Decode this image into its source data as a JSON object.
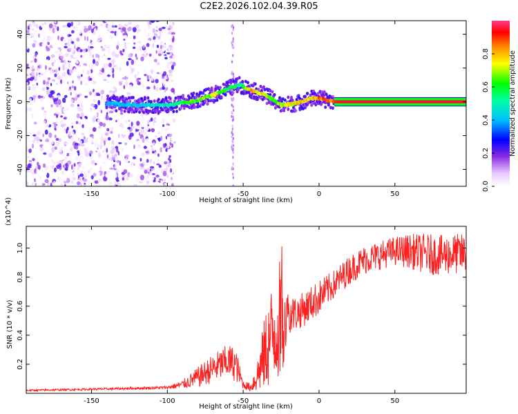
{
  "title": "C2E2.2026.102.04.39.R05",
  "colorbar": {
    "label": "Normalized spectral amplitude",
    "ticks": [
      "0.0",
      "0.2",
      "0.4",
      "0.6",
      "0.8"
    ],
    "tick_values": [
      0.0,
      0.2,
      0.4,
      0.6,
      0.8
    ]
  },
  "chart_data": [
    {
      "type": "heatmap",
      "title": "",
      "xlabel": "Height of straight line (km)",
      "ylabel": "Frequency (Hz)",
      "xlim": [
        -193,
        97
      ],
      "ylim": [
        -50,
        48
      ],
      "xticks": [
        -150,
        -100,
        -50,
        0,
        50
      ],
      "xtick_labels": [
        "-150",
        "-100",
        "-50",
        "0",
        "50"
      ],
      "yticks": [
        -40,
        -20,
        0,
        20,
        40
      ],
      "ytick_labels": [
        "-40",
        "-20",
        "0",
        "20",
        "40"
      ],
      "zlim": [
        0,
        1
      ],
      "ridge": {
        "x": [
          -140,
          -120,
          -100,
          -85,
          -70,
          -60,
          -52,
          -45,
          -35,
          -25,
          -15,
          -5,
          0,
          10,
          97
        ],
        "freq": [
          -1,
          -2,
          -2,
          0,
          4,
          8,
          10,
          7,
          4,
          -2,
          -1,
          2,
          2,
          0,
          0
        ],
        "amplitude": [
          0.4,
          0.45,
          0.5,
          0.65,
          0.75,
          0.6,
          0.55,
          0.85,
          0.75,
          0.7,
          0.8,
          0.8,
          0.9,
          0.95,
          0.95
        ]
      },
      "noise_region": {
        "x": [
          -193,
          -95
        ],
        "freq": [
          -50,
          48
        ],
        "amplitude": [
          0.0,
          0.25
        ]
      }
    },
    {
      "type": "line",
      "title": "",
      "xlabel": "Height of straight line (km)",
      "ylabel": "SNR (10 * v/v)",
      "y_multiplier": "(x10^4)",
      "xlim": [
        -193,
        97
      ],
      "ylim": [
        0,
        1.15
      ],
      "xticks": [
        -150,
        -100,
        -50,
        0,
        50
      ],
      "xtick_labels": [
        "-150",
        "-100",
        "-50",
        "0",
        "50"
      ],
      "yticks": [
        0.2,
        0.4,
        0.6,
        0.8,
        1.0
      ],
      "ytick_labels": [
        "0.2",
        "0.4",
        "0.6",
        "0.8",
        "1.0"
      ],
      "series": [
        {
          "name": "SNR",
          "color": "#ff2020",
          "x": [
            -193,
            -140,
            -100,
            -90,
            -80,
            -70,
            -60,
            -55,
            -50,
            -45,
            -40,
            -35,
            -30,
            -25,
            -20,
            -15,
            -10,
            -5,
            0,
            10,
            20,
            30,
            40,
            50,
            60,
            70,
            80,
            90,
            97
          ],
          "mean": [
            0.02,
            0.03,
            0.04,
            0.06,
            0.11,
            0.17,
            0.22,
            0.2,
            0.06,
            0.04,
            0.14,
            0.3,
            0.43,
            0.52,
            0.55,
            0.55,
            0.58,
            0.62,
            0.66,
            0.75,
            0.85,
            0.92,
            0.95,
            0.98,
            0.98,
            0.96,
            0.95,
            0.96,
            0.96
          ],
          "amplitude": [
            0.006,
            0.008,
            0.01,
            0.03,
            0.07,
            0.1,
            0.12,
            0.12,
            0.03,
            0.03,
            0.14,
            0.28,
            0.38,
            0.42,
            0.14,
            0.12,
            0.12,
            0.12,
            0.12,
            0.1,
            0.1,
            0.1,
            0.1,
            0.1,
            0.12,
            0.14,
            0.14,
            0.14,
            0.14
          ]
        }
      ]
    }
  ]
}
